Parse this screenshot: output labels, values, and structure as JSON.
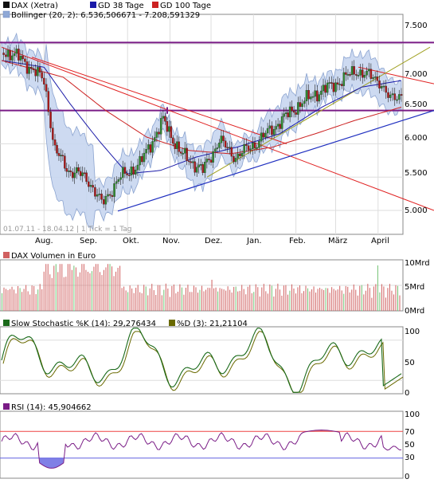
{
  "colors": {
    "price_line": "#111111",
    "candle_up": "#2e8b2e",
    "candle_down": "#b01818",
    "gd38": "#1a1aa8",
    "gd100": "#cc2222",
    "bollinger_fill": "#c8d7f0",
    "bollinger_edge": "#7f9acb",
    "resistance": "#7a1c86",
    "trend_red": "#e02020",
    "trend_blue": "#2030c0",
    "trend_olive": "#a0a020",
    "volume": "#d06060",
    "volume_hi": "#70c070",
    "stoch_k": "#1a6a1a",
    "stoch_d": "#6a6a00",
    "rsi_line": "#7a1c86",
    "rsi_ob": "#e06060",
    "rsi_os": "#6060e0",
    "grid": "#dddddd",
    "ref_line": "#ee4444"
  },
  "legend": {
    "dax": "DAX (Xetra)",
    "gd38": "GD 38 Tage",
    "gd100": "GD 100 Tage",
    "bollinger": "Bollinger (20, 2): 6.536,506671 - 7.208,591329"
  },
  "footer_note": "01.07.11 - 18.04.12  |  1 Tick = 1 Tag",
  "months": [
    "Aug.",
    "Sep.",
    "Okt.",
    "Nov.",
    "Dez.",
    "Jan.",
    "Feb.",
    "März",
    "April"
  ],
  "price_axis": [
    "7.500",
    "7.000",
    "6.500",
    "6.000",
    "5.500",
    "5.000"
  ],
  "volume": {
    "legend": "DAX Volumen in Euro",
    "axis": [
      "10Mrd",
      "5Mrd",
      "0Mrd"
    ]
  },
  "stoch": {
    "legend_k": "Slow Stochastic %K (14): 29,276434",
    "legend_d": "%D (3): 21,21104",
    "axis": [
      "100",
      "50",
      "0"
    ]
  },
  "rsi": {
    "legend": "RSI (14): 45,904662",
    "axis": [
      "100",
      "70",
      "50",
      "30",
      "0"
    ]
  },
  "chart_data": [
    {
      "type": "line",
      "title": "DAX (Xetra)",
      "y_label_ticks": [
        7500,
        7000,
        6500,
        6000,
        5500,
        5000
      ],
      "ylim": [
        4700,
        7700
      ],
      "x_range": [
        "2011-07-01",
        "2012-04-18"
      ],
      "x_ticks": [
        "Aug.",
        "Sep.",
        "Okt.",
        "Nov.",
        "Dez.",
        "Jan.",
        "Feb.",
        "März",
        "April"
      ],
      "series": [
        {
          "name": "DAX (Xetra)",
          "x": [
            "2011-07-01",
            "2011-07-15",
            "2011-08-01",
            "2011-08-09",
            "2011-08-19",
            "2011-09-01",
            "2011-09-12",
            "2011-09-26",
            "2011-10-10",
            "2011-10-27",
            "2011-11-09",
            "2011-11-25",
            "2011-12-07",
            "2011-12-19",
            "2012-01-02",
            "2012-01-16",
            "2012-02-01",
            "2012-02-15",
            "2012-03-01",
            "2012-03-16",
            "2012-04-02",
            "2012-04-10",
            "2012-04-18"
          ],
          "y": [
            7400,
            7280,
            6950,
            5900,
            5600,
            5500,
            5100,
            5500,
            5700,
            6350,
            5850,
            5600,
            6050,
            5800,
            6000,
            6250,
            6550,
            6750,
            6900,
            7100,
            6950,
            6650,
            6750
          ]
        },
        {
          "name": "GD 38 Tage",
          "x": [
            "2011-07-01",
            "2011-08-01",
            "2011-08-20",
            "2011-09-10",
            "2011-10-01",
            "2011-10-25",
            "2011-11-20",
            "2011-12-20",
            "2012-01-20",
            "2012-02-20",
            "2012-03-20",
            "2012-04-18"
          ],
          "y": [
            7250,
            7150,
            6600,
            6050,
            5550,
            5600,
            5800,
            5950,
            6150,
            6550,
            6850,
            6950
          ]
        },
        {
          "name": "GD 100 Tage",
          "x": [
            "2011-07-01",
            "2011-08-15",
            "2011-09-15",
            "2011-10-15",
            "2011-11-15",
            "2011-12-15",
            "2012-01-15",
            "2012-02-15",
            "2012-03-15",
            "2012-04-18"
          ],
          "y": [
            7250,
            7000,
            6500,
            6100,
            5900,
            5850,
            5950,
            6150,
            6350,
            6550
          ]
        }
      ],
      "bollinger": {
        "upper": 7208.591329,
        "lower": 6536.506671,
        "period": 20,
        "stddev": 2
      },
      "resistance_levels": [
        7520,
        6500
      ]
    },
    {
      "type": "bar",
      "title": "DAX Volumen in Euro",
      "unit": "Mrd",
      "ylim": [
        0,
        10
      ],
      "note": "daily volume, peaks about 8 Mrd in August 2011"
    },
    {
      "type": "line",
      "title": "Slow Stochastic %K (14)",
      "ylim": [
        0,
        100
      ],
      "series": [
        {
          "name": "Slow Stochastic %K (14)",
          "last": 29.276434
        },
        {
          "name": "%D (3)",
          "last": 21.21104
        }
      ]
    },
    {
      "type": "line",
      "title": "RSI (14)",
      "ylim": [
        0,
        100
      ],
      "levels": [
        70,
        30
      ],
      "series": [
        {
          "name": "RSI (14)",
          "last": 45.904662
        }
      ]
    }
  ]
}
